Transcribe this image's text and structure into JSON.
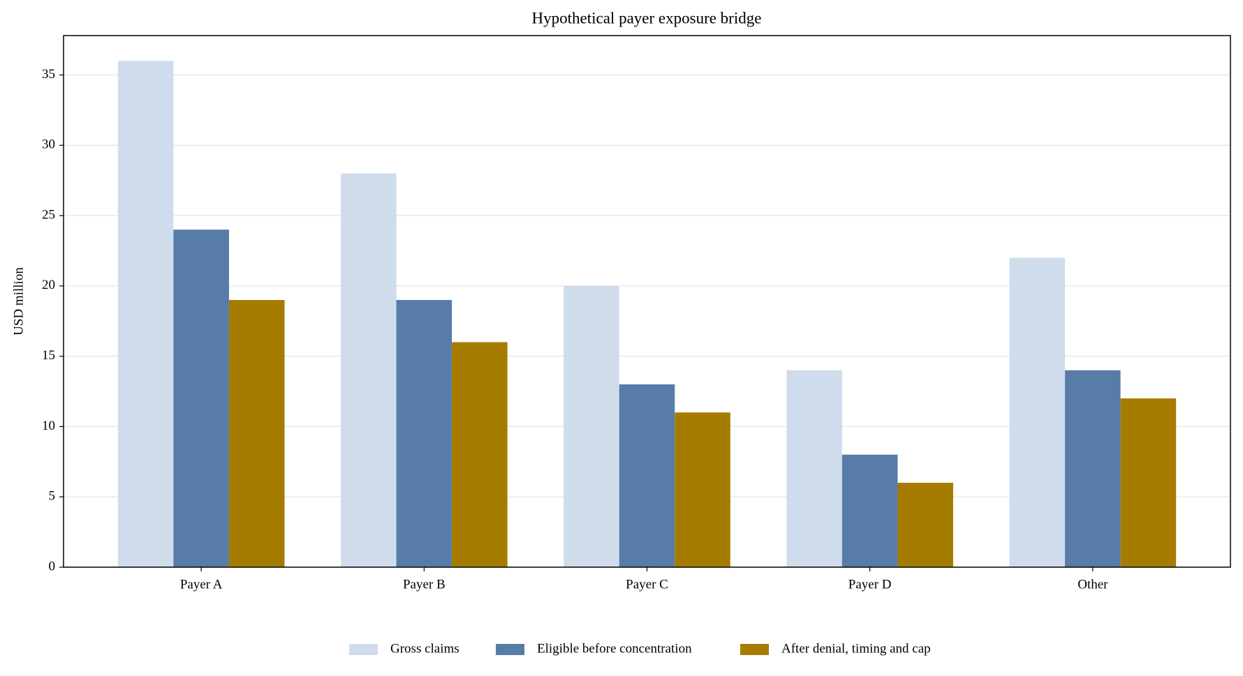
{
  "chart_data": {
    "type": "bar",
    "title": "Hypothetical payer exposure bridge",
    "y_label": "USD million",
    "categories": [
      "Payer A",
      "Payer B",
      "Payer C",
      "Payer D",
      "Other"
    ],
    "series": [
      {
        "name": "Gross claims",
        "color": "#cfdcec",
        "values": [
          36,
          28,
          20,
          14,
          22
        ]
      },
      {
        "name": "Eligible before concentration",
        "color": "#577ca8",
        "values": [
          24,
          19,
          13,
          8,
          14
        ]
      },
      {
        "name": "After denial, timing and cap",
        "color": "#a67c00",
        "values": [
          19,
          16,
          11,
          6,
          12
        ]
      }
    ],
    "ylim": [
      0,
      37.8
    ],
    "yticks": [
      0,
      5,
      10,
      15,
      20,
      25,
      30,
      35
    ],
    "grid": true,
    "legend": "bottom"
  }
}
